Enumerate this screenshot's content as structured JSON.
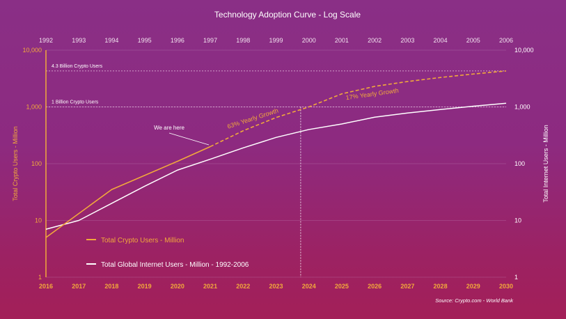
{
  "chart_data": {
    "type": "line",
    "title": "Technology Adoption Curve - Log Scale",
    "yscale": "log",
    "ylim": [
      1,
      10000
    ],
    "y_ticks": [
      "1",
      "10",
      "100",
      "1,000",
      "10,000"
    ],
    "ylabel_left": "Total Crypto Users - Million",
    "ylabel_right": "Total Internet Users - Million",
    "x_bottom": [
      "2016",
      "2017",
      "2018",
      "2019",
      "2020",
      "2021",
      "2022",
      "2023",
      "2024",
      "2025",
      "2026",
      "2027",
      "2028",
      "2029",
      "2030"
    ],
    "x_top": [
      "1992",
      "1993",
      "1994",
      "1995",
      "1996",
      "1997",
      "1998",
      "1999",
      "2000",
      "2001",
      "2002",
      "2003",
      "2004",
      "2005",
      "2006"
    ],
    "series": [
      {
        "name": "Total Crypto Users - Million",
        "color": "#f2a93b",
        "x": [
          2016,
          2018,
          2020,
          2021
        ],
        "values": [
          5,
          35,
          110,
          200
        ],
        "projected_x": [
          2021,
          2022,
          2023,
          2024,
          2025,
          2026,
          2027,
          2028,
          2029,
          2030
        ],
        "projected_values": [
          200,
          380,
          650,
          1000,
          1700,
          2300,
          2800,
          3300,
          3800,
          4300
        ]
      },
      {
        "name": "Total Global Internet Users - Million - 1992-2006",
        "color": "#ffffff",
        "x": [
          1992,
          1993,
          1994,
          1995,
          1996,
          1997,
          1998,
          1999,
          2000,
          2001,
          2002,
          2003,
          2004,
          2005,
          2006
        ],
        "values": [
          7,
          10,
          20,
          40,
          77,
          120,
          190,
          290,
          400,
          500,
          660,
          780,
          900,
          1030,
          1160
        ]
      }
    ],
    "reference_lines": [
      {
        "label": "4.3 Billion Crypto Users",
        "value": 4300
      },
      {
        "label": "1 Billion Crypto Users",
        "value": 1000
      }
    ],
    "marker_line_x": 2023.75,
    "annotations": {
      "we_are_here": "We are here",
      "growth_63": "63% Yearly Growth",
      "growth_17": "17% Yearly Growth"
    },
    "legend": {
      "crypto": "Total Crypto Users - Million",
      "internet": "Total Global Internet Users - Million - 1992-2006"
    },
    "source": "Source: Crypto.com - World Bank"
  }
}
